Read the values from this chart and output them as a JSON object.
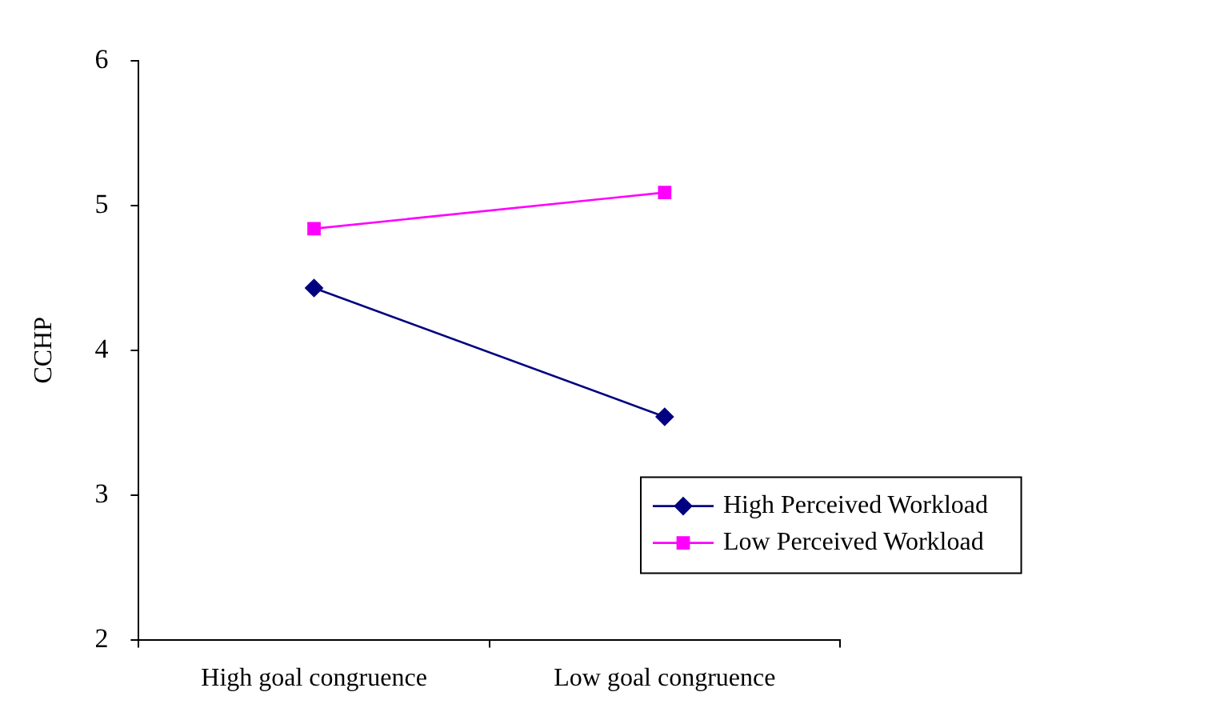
{
  "chart_data": {
    "type": "line",
    "ylabel": "CCHP",
    "categories": [
      "High goal congruence",
      "Low goal congruence"
    ],
    "series": [
      {
        "name": "High Perceived Workload",
        "color": "#000080",
        "marker": "diamond",
        "values": [
          4.43,
          3.54
        ]
      },
      {
        "name": "Low Perceived Workload",
        "color": "#ff00ff",
        "marker": "square",
        "values": [
          4.84,
          5.09
        ]
      }
    ],
    "ylim": [
      2,
      6
    ],
    "yticks": [
      2,
      3,
      4,
      5,
      6
    ],
    "grid": false,
    "legend": "bottom right",
    "line_style": "solid"
  }
}
